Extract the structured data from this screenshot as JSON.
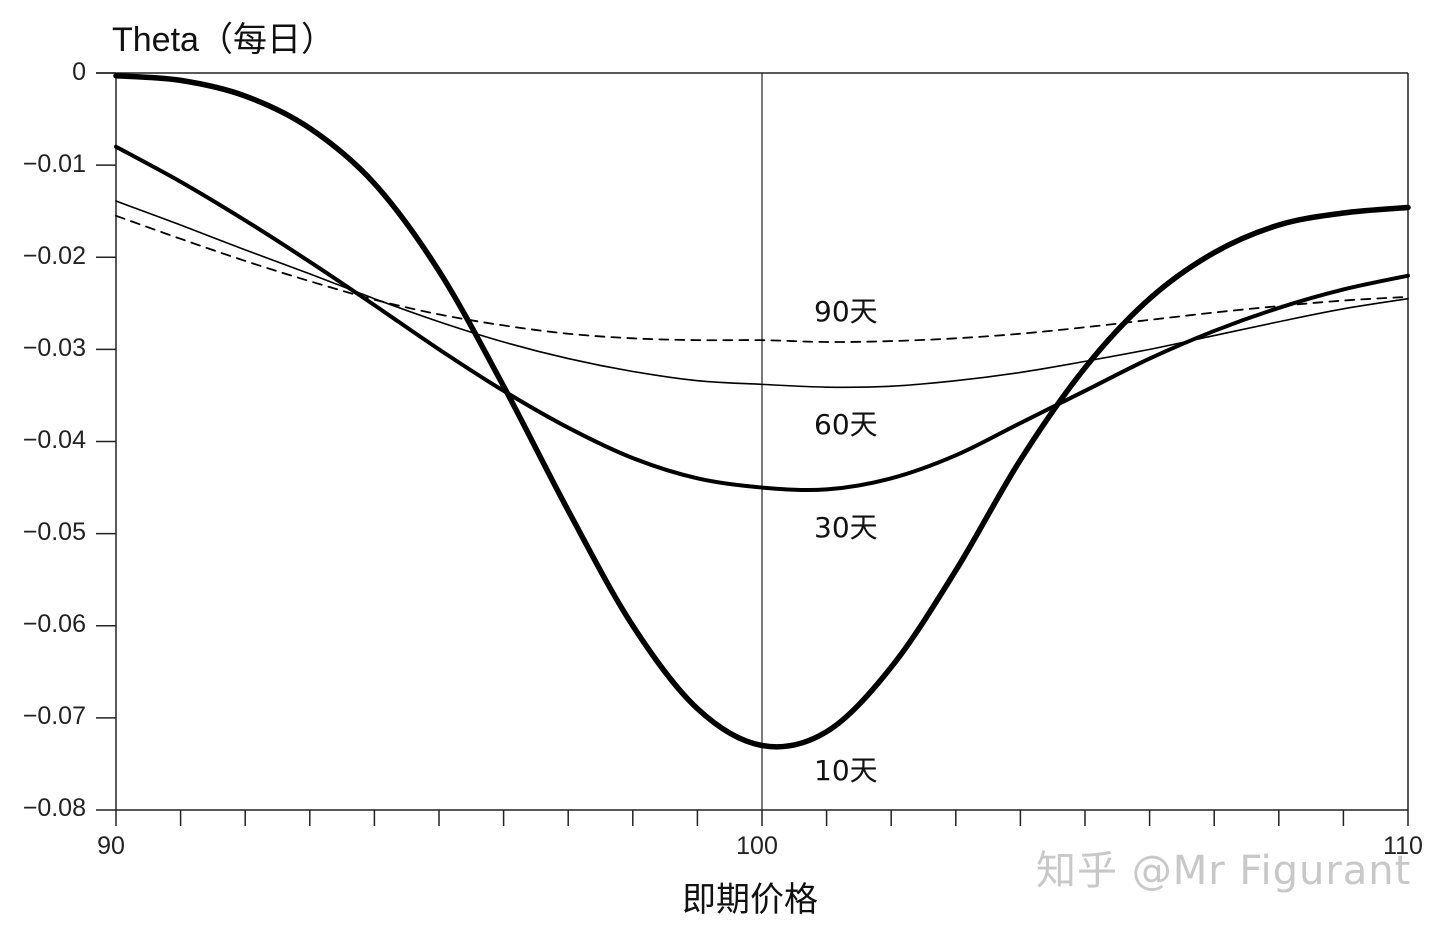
{
  "chart": {
    "title": "Theta（每日）",
    "xlabel": "即期价格",
    "watermark": "知乎 @Mr Figurant",
    "yticks": [
      "0",
      "−0.01",
      "−0.02",
      "−0.03",
      "−0.04",
      "−0.05",
      "−0.06",
      "−0.07",
      "−0.08"
    ],
    "xticks": [
      "90",
      "100",
      "110"
    ],
    "series_labels": {
      "d90": "90天",
      "d60": "60天",
      "d30": "30天",
      "d10": "10天"
    }
  },
  "chart_data": {
    "type": "line",
    "title": "Theta（每日）",
    "xlabel": "即期价格",
    "ylabel": "Theta（每日）",
    "xlim": [
      90,
      110
    ],
    "ylim": [
      -0.08,
      0
    ],
    "xticks_major": [
      90,
      100,
      110
    ],
    "xticks_minor_step": 1,
    "yticks": [
      0,
      -0.01,
      -0.02,
      -0.03,
      -0.04,
      -0.05,
      -0.06,
      -0.07,
      -0.08
    ],
    "grid": false,
    "vertical_reference_line": 100,
    "legend": "inline labels",
    "x": [
      90,
      91,
      92,
      93,
      94,
      95,
      96,
      97,
      98,
      99,
      100,
      101,
      102,
      103,
      104,
      105,
      106,
      107,
      108,
      109,
      110
    ],
    "series": [
      {
        "name": "10天",
        "style": "thick solid",
        "values": [
          -0.0003,
          -0.0008,
          -0.0025,
          -0.006,
          -0.012,
          -0.0215,
          -0.034,
          -0.0475,
          -0.06,
          -0.069,
          -0.073,
          -0.0715,
          -0.0645,
          -0.054,
          -0.042,
          -0.032,
          -0.0245,
          -0.0195,
          -0.0165,
          -0.0152,
          -0.0146
        ]
      },
      {
        "name": "30天",
        "style": "medium solid",
        "values": [
          -0.008,
          -0.0118,
          -0.016,
          -0.0205,
          -0.0252,
          -0.03,
          -0.0345,
          -0.0385,
          -0.0418,
          -0.044,
          -0.045,
          -0.0452,
          -0.044,
          -0.0415,
          -0.038,
          -0.0345,
          -0.031,
          -0.028,
          -0.0255,
          -0.0235,
          -0.022
        ]
      },
      {
        "name": "60天",
        "style": "thin solid",
        "values": [
          -0.0139,
          -0.0165,
          -0.0192,
          -0.0218,
          -0.0245,
          -0.027,
          -0.0292,
          -0.031,
          -0.0324,
          -0.0334,
          -0.0338,
          -0.0341,
          -0.034,
          -0.0334,
          -0.0325,
          -0.0313,
          -0.03,
          -0.0285,
          -0.027,
          -0.0256,
          -0.0245
        ]
      },
      {
        "name": "90天",
        "style": "dashed",
        "values": [
          -0.0155,
          -0.018,
          -0.0204,
          -0.0226,
          -0.0246,
          -0.0262,
          -0.0274,
          -0.0283,
          -0.0288,
          -0.029,
          -0.029,
          -0.0292,
          -0.0291,
          -0.0288,
          -0.0283,
          -0.0276,
          -0.0268,
          -0.026,
          -0.0253,
          -0.0247,
          -0.0243
        ]
      }
    ]
  }
}
